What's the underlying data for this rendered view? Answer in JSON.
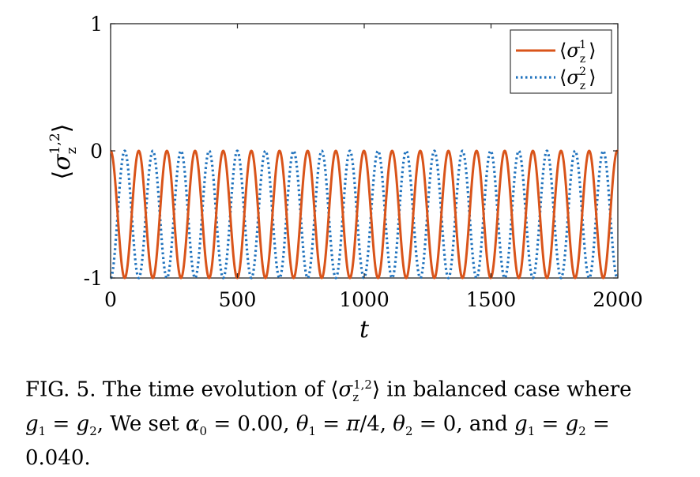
{
  "chart_data": {
    "type": "line",
    "title": "",
    "xlabel": "t",
    "ylabel": "⟨σz1,2⟩",
    "xlim": [
      0,
      2000
    ],
    "ylim": [
      -1,
      1
    ],
    "xticks": [
      0,
      500,
      1000,
      1500,
      2000
    ],
    "xtick_labels": [
      "0",
      "500",
      "1000",
      "1500",
      "2000"
    ],
    "yticks": [
      -1,
      0,
      1
    ],
    "ytick_labels": [
      "-1",
      "0",
      "1"
    ],
    "grid": false,
    "legend_position": "top-right",
    "period": 111,
    "series": [
      {
        "name": "⟨σz1⟩",
        "color": "#D9541A",
        "style": "solid",
        "description_formula": "-sin^2(pi t / period)"
      },
      {
        "name": "⟨σz2⟩",
        "color": "#1F72BD",
        "style": "dotted",
        "description_formula": "-cos^2(pi t / period)"
      }
    ]
  },
  "caption": {
    "lines": [
      "FIG. 5. The time evolution of ⟨σz1,2⟩ in balanced case where",
      "g1 = g2, We set α0 = 0.00, θ1 = π/4, θ2 = 0, and g1 = g2 =",
      "0.040."
    ]
  }
}
